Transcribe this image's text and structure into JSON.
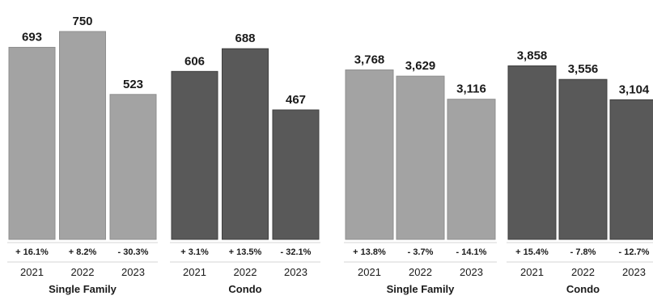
{
  "chart_data": [
    {
      "type": "bar",
      "ylim": [
        0,
        800
      ],
      "groups": [
        {
          "name": "Single Family",
          "color": "#a3a3a3",
          "bars": [
            {
              "year": "2021",
              "value": 693,
              "value_label": "693",
              "change": "+ 16.1%"
            },
            {
              "year": "2022",
              "value": 750,
              "value_label": "750",
              "change": "+ 8.2%"
            },
            {
              "year": "2023",
              "value": 523,
              "value_label": "523",
              "change": "- 30.3%"
            }
          ]
        },
        {
          "name": "Condo",
          "color": "#595959",
          "bars": [
            {
              "year": "2021",
              "value": 606,
              "value_label": "606",
              "change": "+ 3.1%"
            },
            {
              "year": "2022",
              "value": 688,
              "value_label": "688",
              "change": "+ 13.5%"
            },
            {
              "year": "2023",
              "value": 467,
              "value_label": "467",
              "change": "- 32.1%"
            }
          ]
        }
      ]
    },
    {
      "type": "bar",
      "ylim": [
        0,
        4800
      ],
      "groups": [
        {
          "name": "Single Family",
          "color": "#a3a3a3",
          "bars": [
            {
              "year": "2021",
              "value": 3768,
              "value_label": "3,768",
              "change": "+ 13.8%"
            },
            {
              "year": "2022",
              "value": 3629,
              "value_label": "3,629",
              "change": "- 3.7%"
            },
            {
              "year": "2023",
              "value": 3116,
              "value_label": "3,116",
              "change": "- 14.1%"
            }
          ]
        },
        {
          "name": "Condo",
          "color": "#595959",
          "bars": [
            {
              "year": "2021",
              "value": 3858,
              "value_label": "3,858",
              "change": "+ 15.4%"
            },
            {
              "year": "2022",
              "value": 3556,
              "value_label": "3,556",
              "change": "- 7.8%"
            },
            {
              "year": "2023",
              "value": 3104,
              "value_label": "3,104",
              "change": "- 12.7%"
            }
          ]
        }
      ]
    }
  ]
}
